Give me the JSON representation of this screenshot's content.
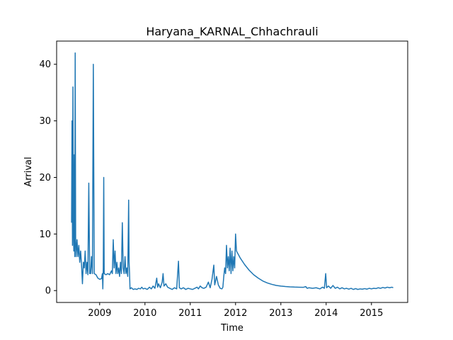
{
  "chart_data": {
    "type": "line",
    "title": "Haryana_KARNAL_Chhachrauli",
    "xlabel": "Time",
    "ylabel": "Arrival",
    "xlim": [
      2008.05,
      2015.8
    ],
    "ylim": [
      -2.1,
      44.1
    ],
    "xticks": [
      2009,
      2010,
      2011,
      2012,
      2013,
      2014,
      2015
    ],
    "xtick_labels": [
      "2009",
      "2010",
      "2011",
      "2012",
      "2013",
      "2014",
      "2015"
    ],
    "yticks": [
      0,
      10,
      20,
      30,
      40
    ],
    "ytick_labels": [
      "0",
      "10",
      "20",
      "30",
      "40"
    ],
    "grid": false,
    "legend": "none",
    "series": [
      {
        "color": "#1f77b4",
        "points": [
          [
            2008.38,
            12
          ],
          [
            2008.39,
            30
          ],
          [
            2008.4,
            8
          ],
          [
            2008.41,
            36
          ],
          [
            2008.42,
            11
          ],
          [
            2008.43,
            7
          ],
          [
            2008.44,
            24
          ],
          [
            2008.45,
            6
          ],
          [
            2008.46,
            42
          ],
          [
            2008.47,
            9
          ],
          [
            2008.48,
            6
          ],
          [
            2008.5,
            9
          ],
          [
            2008.52,
            6
          ],
          [
            2008.54,
            8
          ],
          [
            2008.56,
            5
          ],
          [
            2008.58,
            7
          ],
          [
            2008.6,
            4.5
          ],
          [
            2008.62,
            1.2
          ],
          [
            2008.64,
            5
          ],
          [
            2008.66,
            4
          ],
          [
            2008.68,
            7
          ],
          [
            2008.7,
            3
          ],
          [
            2008.72,
            5
          ],
          [
            2008.74,
            2.8
          ],
          [
            2008.76,
            19
          ],
          [
            2008.78,
            3
          ],
          [
            2008.8,
            3
          ],
          [
            2008.82,
            6
          ],
          [
            2008.84,
            3
          ],
          [
            2008.86,
            40
          ],
          [
            2008.88,
            3
          ],
          [
            2008.92,
            2.8
          ],
          [
            2008.96,
            2.2
          ],
          [
            2009.0,
            2.0
          ],
          [
            2009.04,
            2.1
          ],
          [
            2009.06,
            3
          ],
          [
            2009.07,
            0.3
          ],
          [
            2009.08,
            4
          ],
          [
            2009.09,
            20
          ],
          [
            2009.1,
            3
          ],
          [
            2009.14,
            2.8
          ],
          [
            2009.18,
            3
          ],
          [
            2009.22,
            2.8
          ],
          [
            2009.26,
            3.5
          ],
          [
            2009.28,
            3
          ],
          [
            2009.3,
            9
          ],
          [
            2009.32,
            4
          ],
          [
            2009.34,
            7
          ],
          [
            2009.36,
            3
          ],
          [
            2009.38,
            5
          ],
          [
            2009.4,
            3
          ],
          [
            2009.42,
            4
          ],
          [
            2009.44,
            2.5
          ],
          [
            2009.46,
            5
          ],
          [
            2009.48,
            3
          ],
          [
            2009.5,
            12
          ],
          [
            2009.52,
            4
          ],
          [
            2009.54,
            3
          ],
          [
            2009.56,
            6
          ],
          [
            2009.58,
            3
          ],
          [
            2009.6,
            4
          ],
          [
            2009.62,
            2.5
          ],
          [
            2009.64,
            16
          ],
          [
            2009.65,
            5
          ],
          [
            2009.66,
            3
          ],
          [
            2009.67,
            0.3
          ],
          [
            2009.7,
            0.5
          ],
          [
            2009.74,
            0.2
          ],
          [
            2009.78,
            0.3
          ],
          [
            2009.82,
            0.2
          ],
          [
            2009.86,
            0.4
          ],
          [
            2009.9,
            0.3
          ],
          [
            2009.93,
            0.6
          ],
          [
            2009.96,
            0.3
          ],
          [
            2010.0,
            0.4
          ],
          [
            2010.05,
            0.2
          ],
          [
            2010.1,
            0.6
          ],
          [
            2010.14,
            0.3
          ],
          [
            2010.18,
            0.8
          ],
          [
            2010.22,
            0.4
          ],
          [
            2010.26,
            2.2
          ],
          [
            2010.28,
            0.6
          ],
          [
            2010.3,
            1.2
          ],
          [
            2010.34,
            0.5
          ],
          [
            2010.38,
            1.5
          ],
          [
            2010.4,
            3
          ],
          [
            2010.42,
            0.8
          ],
          [
            2010.46,
            1.2
          ],
          [
            2010.5,
            0.6
          ],
          [
            2010.55,
            0.4
          ],
          [
            2010.6,
            0.2
          ],
          [
            2010.65,
            0.5
          ],
          [
            2010.7,
            0.3
          ],
          [
            2010.74,
            5.2
          ],
          [
            2010.76,
            0.5
          ],
          [
            2010.8,
            0.3
          ],
          [
            2010.85,
            0.5
          ],
          [
            2010.9,
            0.2
          ],
          [
            2010.95,
            0.4
          ],
          [
            2011.0,
            0.3
          ],
          [
            2011.05,
            0.2
          ],
          [
            2011.1,
            0.4
          ],
          [
            2011.15,
            0.6
          ],
          [
            2011.18,
            0.3
          ],
          [
            2011.22,
            0.8
          ],
          [
            2011.26,
            0.5
          ],
          [
            2011.3,
            0.4
          ],
          [
            2011.35,
            0.6
          ],
          [
            2011.4,
            1.5
          ],
          [
            2011.44,
            0.5
          ],
          [
            2011.48,
            2
          ],
          [
            2011.52,
            4.5
          ],
          [
            2011.54,
            1
          ],
          [
            2011.58,
            2.5
          ],
          [
            2011.62,
            1
          ],
          [
            2011.66,
            0.4
          ],
          [
            2011.7,
            0.3
          ],
          [
            2011.72,
            0.6
          ],
          [
            2011.74,
            2.5
          ],
          [
            2011.76,
            4
          ],
          [
            2011.78,
            3
          ],
          [
            2011.8,
            8
          ],
          [
            2011.82,
            4
          ],
          [
            2011.84,
            6
          ],
          [
            2011.86,
            3.5
          ],
          [
            2011.88,
            7.5
          ],
          [
            2011.9,
            3
          ],
          [
            2011.92,
            7
          ],
          [
            2011.94,
            3.5
          ],
          [
            2011.96,
            6
          ],
          [
            2011.98,
            4
          ],
          [
            2012.0,
            10
          ],
          [
            2012.02,
            7
          ],
          [
            2012.1,
            5.8
          ],
          [
            2012.2,
            4.6
          ],
          [
            2012.3,
            3.6
          ],
          [
            2012.4,
            2.8
          ],
          [
            2012.5,
            2.2
          ],
          [
            2012.6,
            1.7
          ],
          [
            2012.7,
            1.35
          ],
          [
            2012.8,
            1.1
          ],
          [
            2012.9,
            0.9
          ],
          [
            2013.0,
            0.8
          ],
          [
            2013.1,
            0.72
          ],
          [
            2013.2,
            0.66
          ],
          [
            2013.3,
            0.62
          ],
          [
            2013.4,
            0.6
          ],
          [
            2013.5,
            0.58
          ],
          [
            2013.55,
            0.7
          ],
          [
            2013.58,
            0.4
          ],
          [
            2013.62,
            0.5
          ],
          [
            2013.7,
            0.4
          ],
          [
            2013.78,
            0.5
          ],
          [
            2013.86,
            0.3
          ],
          [
            2013.92,
            0.6
          ],
          [
            2013.96,
            0.4
          ],
          [
            2013.99,
            3
          ],
          [
            2014.01,
            0.5
          ],
          [
            2014.05,
            0.8
          ],
          [
            2014.1,
            0.4
          ],
          [
            2014.15,
            0.9
          ],
          [
            2014.2,
            0.4
          ],
          [
            2014.25,
            0.6
          ],
          [
            2014.3,
            0.3
          ],
          [
            2014.35,
            0.5
          ],
          [
            2014.4,
            0.3
          ],
          [
            2014.45,
            0.4
          ],
          [
            2014.5,
            0.25
          ],
          [
            2014.55,
            0.4
          ],
          [
            2014.6,
            0.2
          ],
          [
            2014.65,
            0.35
          ],
          [
            2014.7,
            0.2
          ],
          [
            2014.75,
            0.3
          ],
          [
            2014.8,
            0.25
          ],
          [
            2014.85,
            0.35
          ],
          [
            2014.9,
            0.25
          ],
          [
            2014.95,
            0.4
          ],
          [
            2015.0,
            0.3
          ],
          [
            2015.05,
            0.4
          ],
          [
            2015.1,
            0.35
          ],
          [
            2015.15,
            0.5
          ],
          [
            2015.2,
            0.4
          ],
          [
            2015.25,
            0.55
          ],
          [
            2015.3,
            0.45
          ],
          [
            2015.35,
            0.6
          ],
          [
            2015.4,
            0.5
          ],
          [
            2015.45,
            0.6
          ],
          [
            2015.48,
            0.5
          ]
        ]
      }
    ]
  }
}
